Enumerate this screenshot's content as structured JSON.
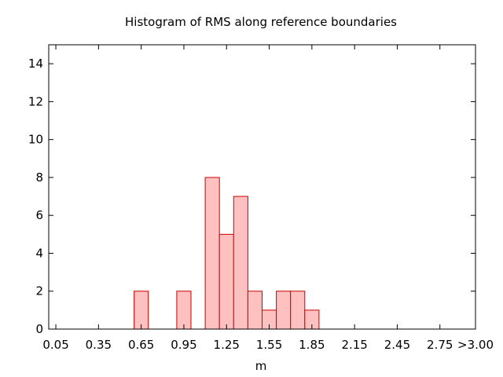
{
  "chart_data": {
    "type": "bar",
    "title": "Histogram of RMS along reference boundaries",
    "xlabel": "m",
    "ylabel": "",
    "x_tick_labels": [
      "0.05",
      "0.35",
      "0.65",
      "0.95",
      "1.25",
      "1.55",
      "1.85",
      "2.15",
      "2.45",
      "2.75",
      ">3.00"
    ],
    "y_tick_labels": [
      "0",
      "2",
      "4",
      "6",
      "8",
      "10",
      "12",
      "14"
    ],
    "ylim": [
      0,
      15
    ],
    "xlim": [
      0.0,
      3.0
    ],
    "bin_width": 0.1,
    "bins": [
      {
        "x": 0.65,
        "count": 2
      },
      {
        "x": 0.95,
        "count": 2
      },
      {
        "x": 1.15,
        "count": 8
      },
      {
        "x": 1.25,
        "count": 5
      },
      {
        "x": 1.35,
        "count": 7
      },
      {
        "x": 1.45,
        "count": 2
      },
      {
        "x": 1.55,
        "count": 1
      },
      {
        "x": 1.65,
        "count": 2
      },
      {
        "x": 1.75,
        "count": 2
      },
      {
        "x": 1.85,
        "count": 1
      }
    ],
    "grid": false,
    "legend": "none",
    "bar_fill": "#ffc0c0",
    "bar_stroke": "#cc0000"
  }
}
